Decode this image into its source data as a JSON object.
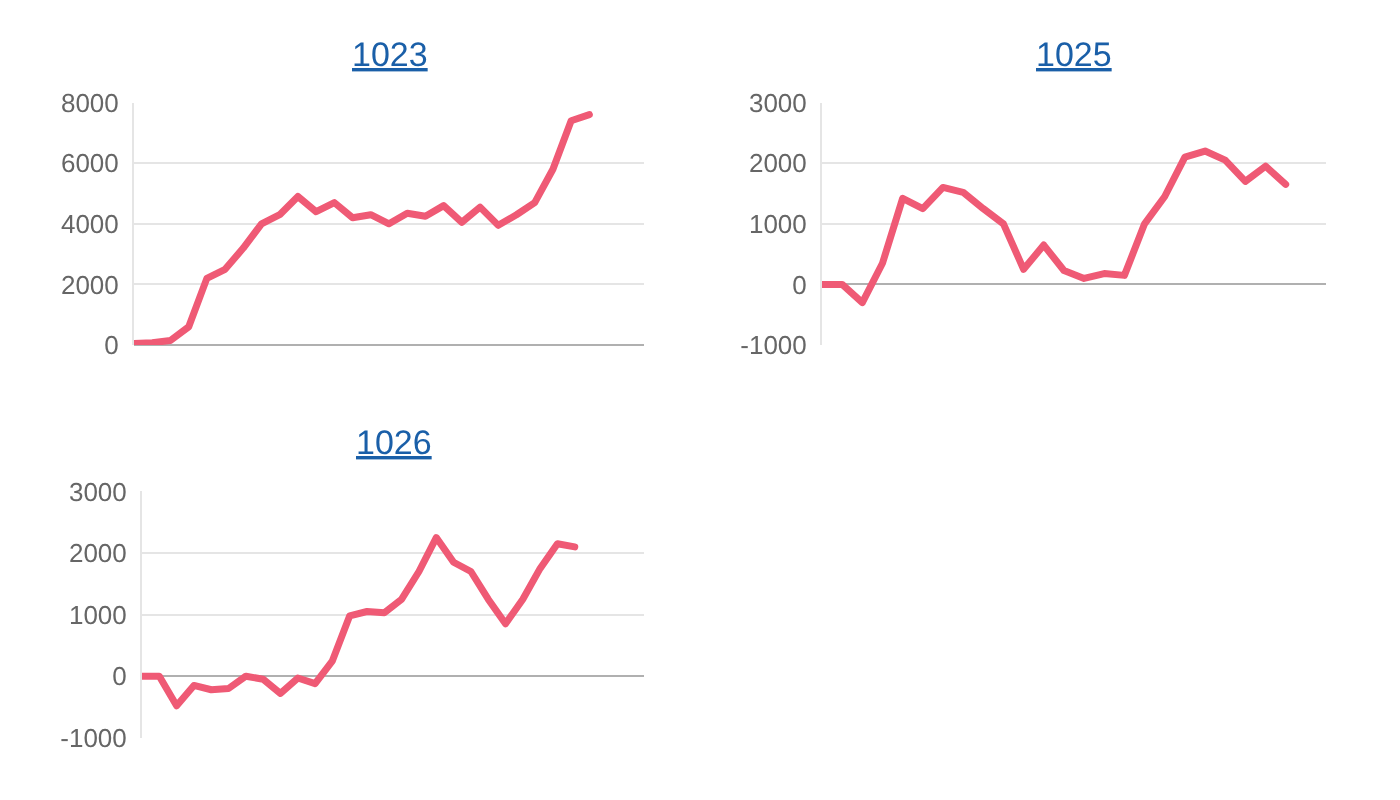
{
  "chart_data": [
    {
      "type": "line",
      "title": "1023",
      "categories": [
        null,
        null,
        null,
        null,
        null,
        null,
        null,
        null,
        null,
        null,
        null,
        null,
        null,
        null,
        null,
        null,
        null,
        null,
        null,
        null,
        null,
        null,
        null,
        null,
        null,
        null,
        null,
        null,
        null
      ],
      "series": [
        {
          "color": "#ef5a75",
          "values": [
            50,
            80,
            150,
            600,
            2200,
            2500,
            3200,
            4000,
            4300,
            4900,
            4400,
            4700,
            4200,
            4300,
            4000,
            4350,
            4250,
            4600,
            4050,
            4550,
            3950,
            4300,
            4700,
            5800,
            7400,
            7600,
            null,
            null,
            null
          ]
        }
      ],
      "ylim": [
        0,
        8000
      ],
      "yticks": [
        0,
        2000,
        4000,
        6000,
        8000
      ],
      "grid": "y",
      "tick_labels": "y",
      "marker": "none",
      "line_style": "solid"
    },
    {
      "type": "line",
      "title": "1025",
      "categories": [
        null,
        null,
        null,
        null,
        null,
        null,
        null,
        null,
        null,
        null,
        null,
        null,
        null,
        null,
        null,
        null,
        null,
        null,
        null,
        null,
        null,
        null,
        null,
        null,
        null,
        null
      ],
      "series": [
        {
          "color": "#ef5a75",
          "values": [
            0,
            0,
            -300,
            350,
            1420,
            1250,
            1600,
            1520,
            1250,
            1000,
            250,
            650,
            230,
            100,
            180,
            150,
            1000,
            1450,
            2100,
            2200,
            2050,
            1700,
            1950,
            1650,
            null,
            null
          ]
        }
      ],
      "ylim": [
        -1000,
        3000
      ],
      "yticks": [
        -1000,
        0,
        1000,
        2000,
        3000
      ],
      "grid": "y",
      "tick_labels": "y",
      "marker": "none",
      "line_style": "solid"
    },
    {
      "type": "line",
      "title": "1026",
      "categories": [
        null,
        null,
        null,
        null,
        null,
        null,
        null,
        null,
        null,
        null,
        null,
        null,
        null,
        null,
        null,
        null,
        null,
        null,
        null,
        null,
        null,
        null,
        null,
        null,
        null,
        null,
        null,
        null,
        null,
        null
      ],
      "series": [
        {
          "color": "#ef5a75",
          "values": [
            0,
            0,
            -480,
            -150,
            -220,
            -200,
            0,
            -50,
            -280,
            -30,
            -120,
            250,
            980,
            1050,
            1030,
            1250,
            1700,
            2250,
            1850,
            1700,
            1250,
            850,
            1250,
            1750,
            2150,
            2100,
            null,
            null,
            null,
            null
          ]
        }
      ],
      "ylim": [
        -1000,
        3000
      ],
      "yticks": [
        -1000,
        0,
        1000,
        2000,
        3000
      ],
      "grid": "y",
      "tick_labels": "y",
      "marker": "none",
      "line_style": "solid"
    }
  ]
}
